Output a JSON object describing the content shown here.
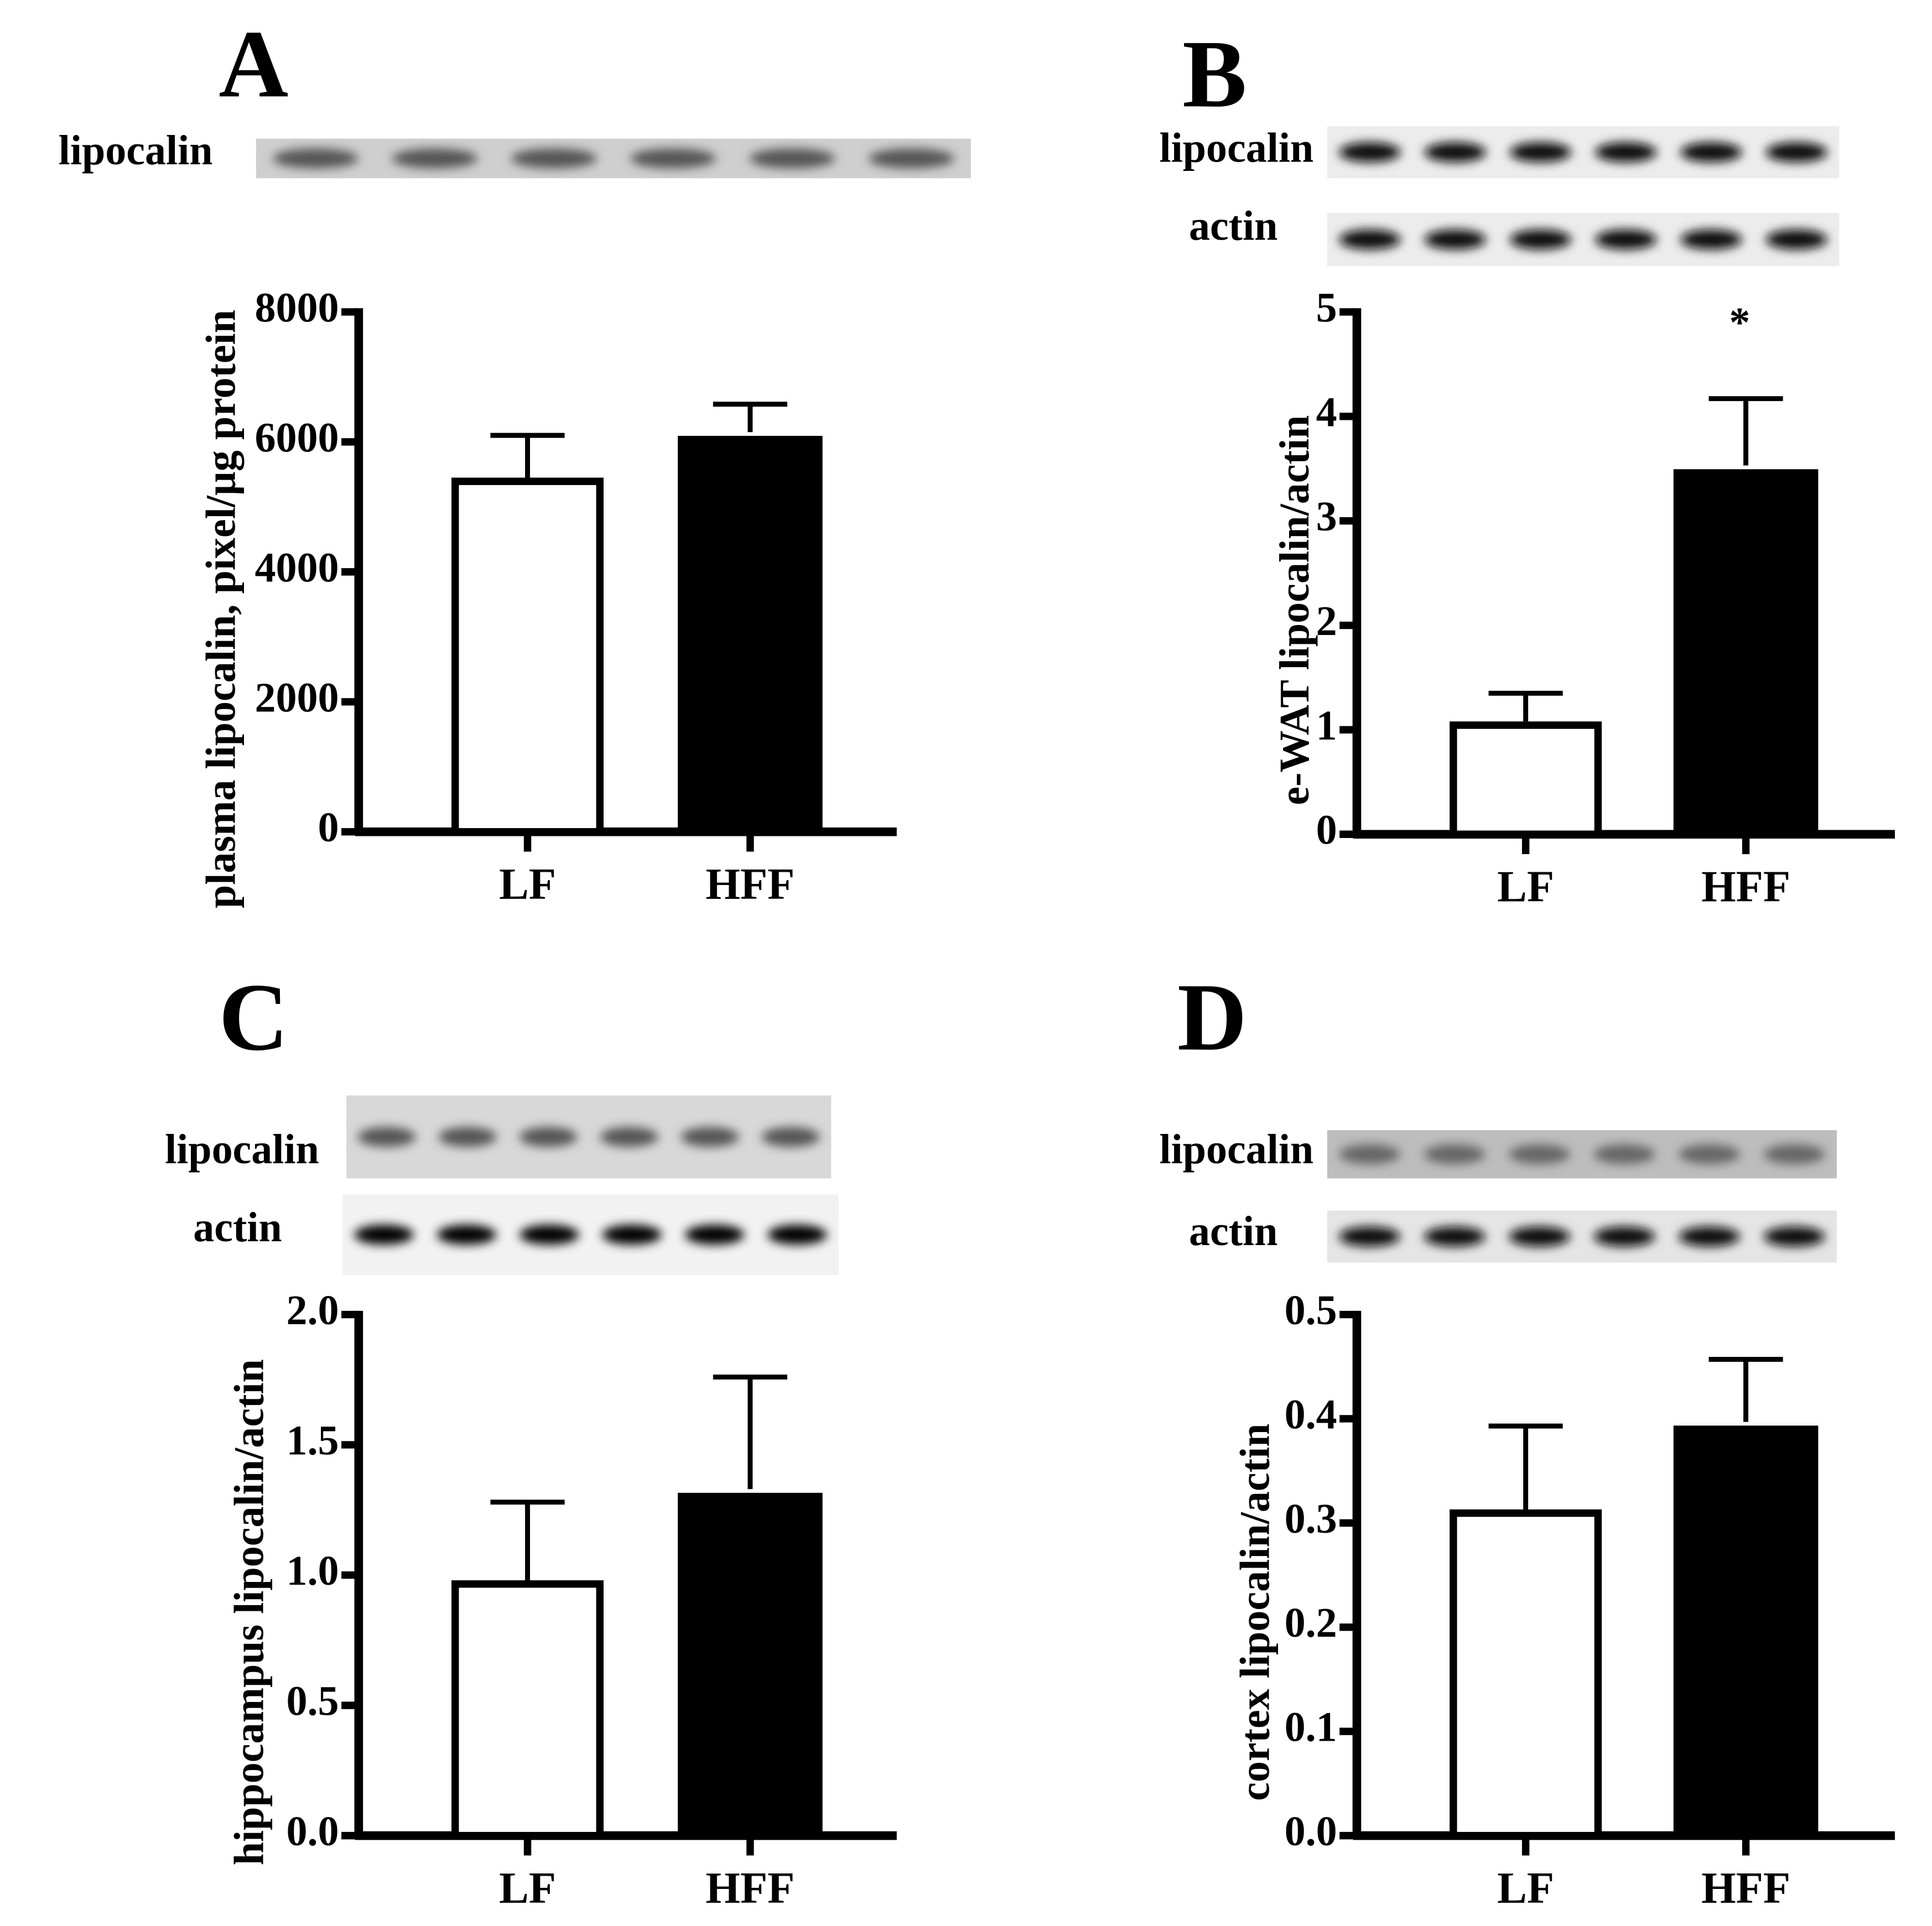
{
  "chart_data": [
    {
      "type": "bar",
      "panel": "A",
      "blots": [
        "lipocalin"
      ],
      "ylabel": "plasma lipocalin, pixel/µg protein",
      "categories": [
        "LF",
        "HFF"
      ],
      "values": [
        5450,
        6150
      ],
      "errors": [
        650,
        430
      ],
      "colors": [
        "#ffffff",
        "#000000"
      ],
      "ylim": [
        0,
        8000
      ],
      "yticks": [
        0,
        2000,
        4000,
        6000,
        8000
      ]
    },
    {
      "type": "bar",
      "panel": "B",
      "blots": [
        "lipocalin",
        "actin"
      ],
      "ylabel": "e-WAT lipocalin/actin",
      "categories": [
        "LF",
        "HFF"
      ],
      "values": [
        1.08,
        3.53
      ],
      "errors": [
        0.27,
        0.64
      ],
      "colors": [
        "#ffffff",
        "#000000"
      ],
      "annotations": [
        null,
        "*"
      ],
      "ylim": [
        0,
        5
      ],
      "yticks": [
        0,
        1,
        2,
        3,
        4,
        5
      ]
    },
    {
      "type": "bar",
      "panel": "C",
      "blots": [
        "lipocalin",
        "actin"
      ],
      "ylabel": "hippocampus lipocalin/actin",
      "categories": [
        "LF",
        "HFF"
      ],
      "values": [
        0.98,
        1.33
      ],
      "errors": [
        0.3,
        0.43
      ],
      "colors": [
        "#ffffff",
        "#000000"
      ],
      "ylim": [
        0,
        2
      ],
      "yticks": [
        {
          "value": 0,
          "label": "0.0"
        },
        0.5,
        {
          "value": 1,
          "label": "1.0"
        },
        1.5,
        {
          "value": 2,
          "label": "2.0"
        }
      ]
    },
    {
      "type": "bar",
      "panel": "D",
      "blots": [
        "lipocalin",
        "actin"
      ],
      "ylabel": "cortex lipocalin/actin",
      "categories": [
        "LF",
        "HFF"
      ],
      "values": [
        0.313,
        0.397
      ],
      "errors": [
        0.08,
        0.06
      ],
      "colors": [
        "#ffffff",
        "#000000"
      ],
      "ylim": [
        0,
        0.5
      ],
      "yticks": [
        {
          "value": 0,
          "label": "0.0"
        },
        0.1,
        0.2,
        0.3,
        0.4,
        0.5
      ]
    }
  ]
}
